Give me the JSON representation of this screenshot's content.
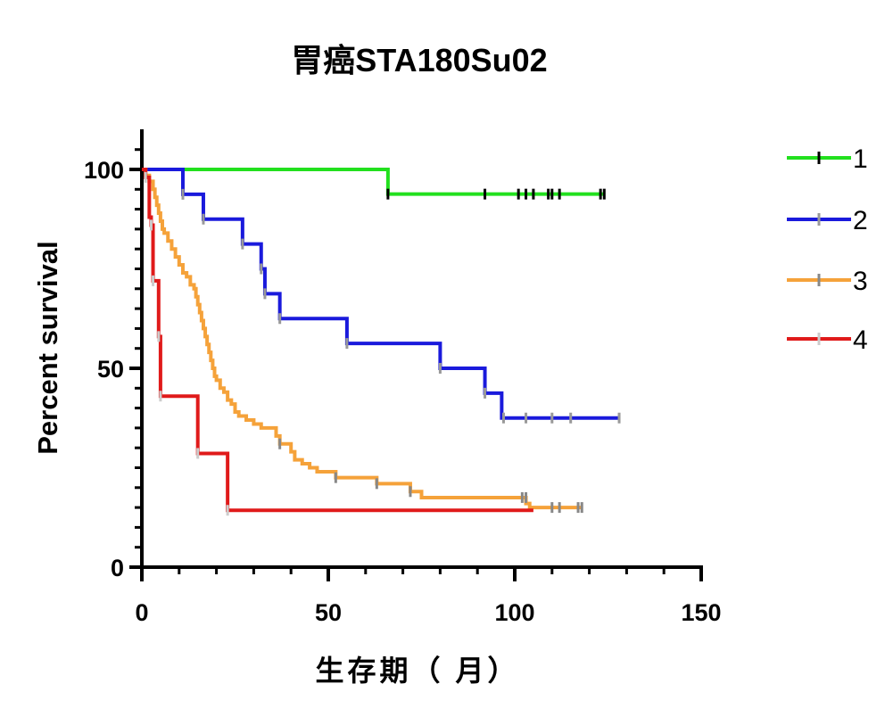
{
  "chart_data": {
    "type": "line",
    "subtype": "kaplan-meier",
    "title": "胃癌STA180Su02",
    "xlabel": "生存期（ 月）",
    "ylabel": "Percent survival",
    "xlim": [
      0,
      150
    ],
    "ylim": [
      0,
      110
    ],
    "xticks": [
      0,
      50,
      100,
      150
    ],
    "xtick_labels": [
      "0",
      "50",
      "100",
      "150"
    ],
    "yticks": [
      0,
      50,
      100
    ],
    "ytick_labels": [
      "0",
      "50",
      "100"
    ],
    "grid": false,
    "legend_position": "right",
    "series": [
      {
        "name": "1",
        "color": "#22e01e",
        "tick_color": "#000000",
        "steps": [
          [
            0,
            100
          ],
          [
            66,
            93.8
          ],
          [
            124,
            93.8
          ]
        ],
        "censors": [
          [
            66,
            93.8
          ],
          [
            92,
            93.8
          ],
          [
            101,
            93.8
          ],
          [
            103,
            93.8
          ],
          [
            105,
            93.8
          ],
          [
            109,
            93.8
          ],
          [
            110,
            93.8
          ],
          [
            112,
            93.8
          ],
          [
            123,
            93.8
          ],
          [
            124,
            93.8
          ]
        ]
      },
      {
        "name": "2",
        "color": "#1a1adc",
        "tick_color": "#999999",
        "steps": [
          [
            0,
            100
          ],
          [
            11,
            93.75
          ],
          [
            16.5,
            87.5
          ],
          [
            27,
            81.25
          ],
          [
            32,
            75
          ],
          [
            33,
            68.75
          ],
          [
            37,
            62.5
          ],
          [
            55,
            56.25
          ],
          [
            80,
            50
          ],
          [
            92,
            43.75
          ],
          [
            96.5,
            37.5
          ],
          [
            128,
            37.5
          ]
        ],
        "censors": [
          [
            11,
            93.75
          ],
          [
            16.5,
            87.5
          ],
          [
            27,
            81.25
          ],
          [
            32,
            75
          ],
          [
            33,
            68.75
          ],
          [
            37,
            62.5
          ],
          [
            55,
            56.25
          ],
          [
            80,
            50
          ],
          [
            92,
            43.75
          ],
          [
            97,
            37.5
          ],
          [
            103,
            37.5
          ],
          [
            110,
            37.5
          ],
          [
            115,
            37.5
          ],
          [
            128,
            37.5
          ]
        ]
      },
      {
        "name": "3",
        "color": "#f5a23a",
        "tick_color": "#888888",
        "steps": [
          [
            0,
            100
          ],
          [
            1,
            98.5
          ],
          [
            2,
            97
          ],
          [
            3,
            95
          ],
          [
            3.5,
            93
          ],
          [
            4,
            91
          ],
          [
            4.5,
            89
          ],
          [
            5,
            87
          ],
          [
            5.5,
            85
          ],
          [
            6,
            84
          ],
          [
            7,
            82
          ],
          [
            8,
            80
          ],
          [
            9,
            78
          ],
          [
            10,
            76
          ],
          [
            11,
            74
          ],
          [
            12,
            73
          ],
          [
            13,
            71
          ],
          [
            14,
            70
          ],
          [
            14.5,
            68
          ],
          [
            15,
            66
          ],
          [
            15.5,
            64
          ],
          [
            16,
            62
          ],
          [
            16.5,
            60
          ],
          [
            17,
            58
          ],
          [
            17.5,
            56
          ],
          [
            18,
            54
          ],
          [
            18.5,
            52
          ],
          [
            19,
            50
          ],
          [
            19.5,
            48
          ],
          [
            20,
            47
          ],
          [
            21,
            45
          ],
          [
            22,
            44
          ],
          [
            23,
            42
          ],
          [
            24,
            41
          ],
          [
            25,
            39
          ],
          [
            26,
            38
          ],
          [
            28,
            37
          ],
          [
            30,
            36
          ],
          [
            32,
            35
          ],
          [
            36,
            33
          ],
          [
            37,
            31
          ],
          [
            40,
            29
          ],
          [
            41,
            27
          ],
          [
            43,
            26
          ],
          [
            45,
            25
          ],
          [
            47,
            24
          ],
          [
            52,
            22.5
          ],
          [
            63,
            21
          ],
          [
            72,
            19
          ],
          [
            75,
            17.5
          ],
          [
            97,
            17.5
          ],
          [
            103,
            16
          ],
          [
            104,
            15
          ],
          [
            118,
            15
          ]
        ],
        "censors": [
          [
            37,
            31
          ],
          [
            52,
            22.5
          ],
          [
            63,
            21
          ],
          [
            72,
            19
          ],
          [
            102,
            17.5
          ],
          [
            103,
            17.5
          ],
          [
            110,
            15
          ],
          [
            112,
            15
          ],
          [
            117,
            15
          ],
          [
            118,
            15
          ]
        ]
      },
      {
        "name": "4",
        "color": "#e01a1a",
        "tick_color": "#cccccc",
        "steps": [
          [
            0,
            100
          ],
          [
            1,
            98
          ],
          [
            2,
            88
          ],
          [
            2.5,
            86
          ],
          [
            3,
            72
          ],
          [
            4.5,
            58
          ],
          [
            5,
            43
          ],
          [
            15,
            28.6
          ],
          [
            23,
            14.3
          ],
          [
            105,
            14.3
          ]
        ],
        "censors": [
          [
            1,
            98
          ],
          [
            2.5,
            86
          ],
          [
            3,
            72
          ],
          [
            4.5,
            58
          ],
          [
            5,
            43
          ],
          [
            15,
            28.6
          ],
          [
            23,
            14.3
          ]
        ]
      }
    ]
  }
}
